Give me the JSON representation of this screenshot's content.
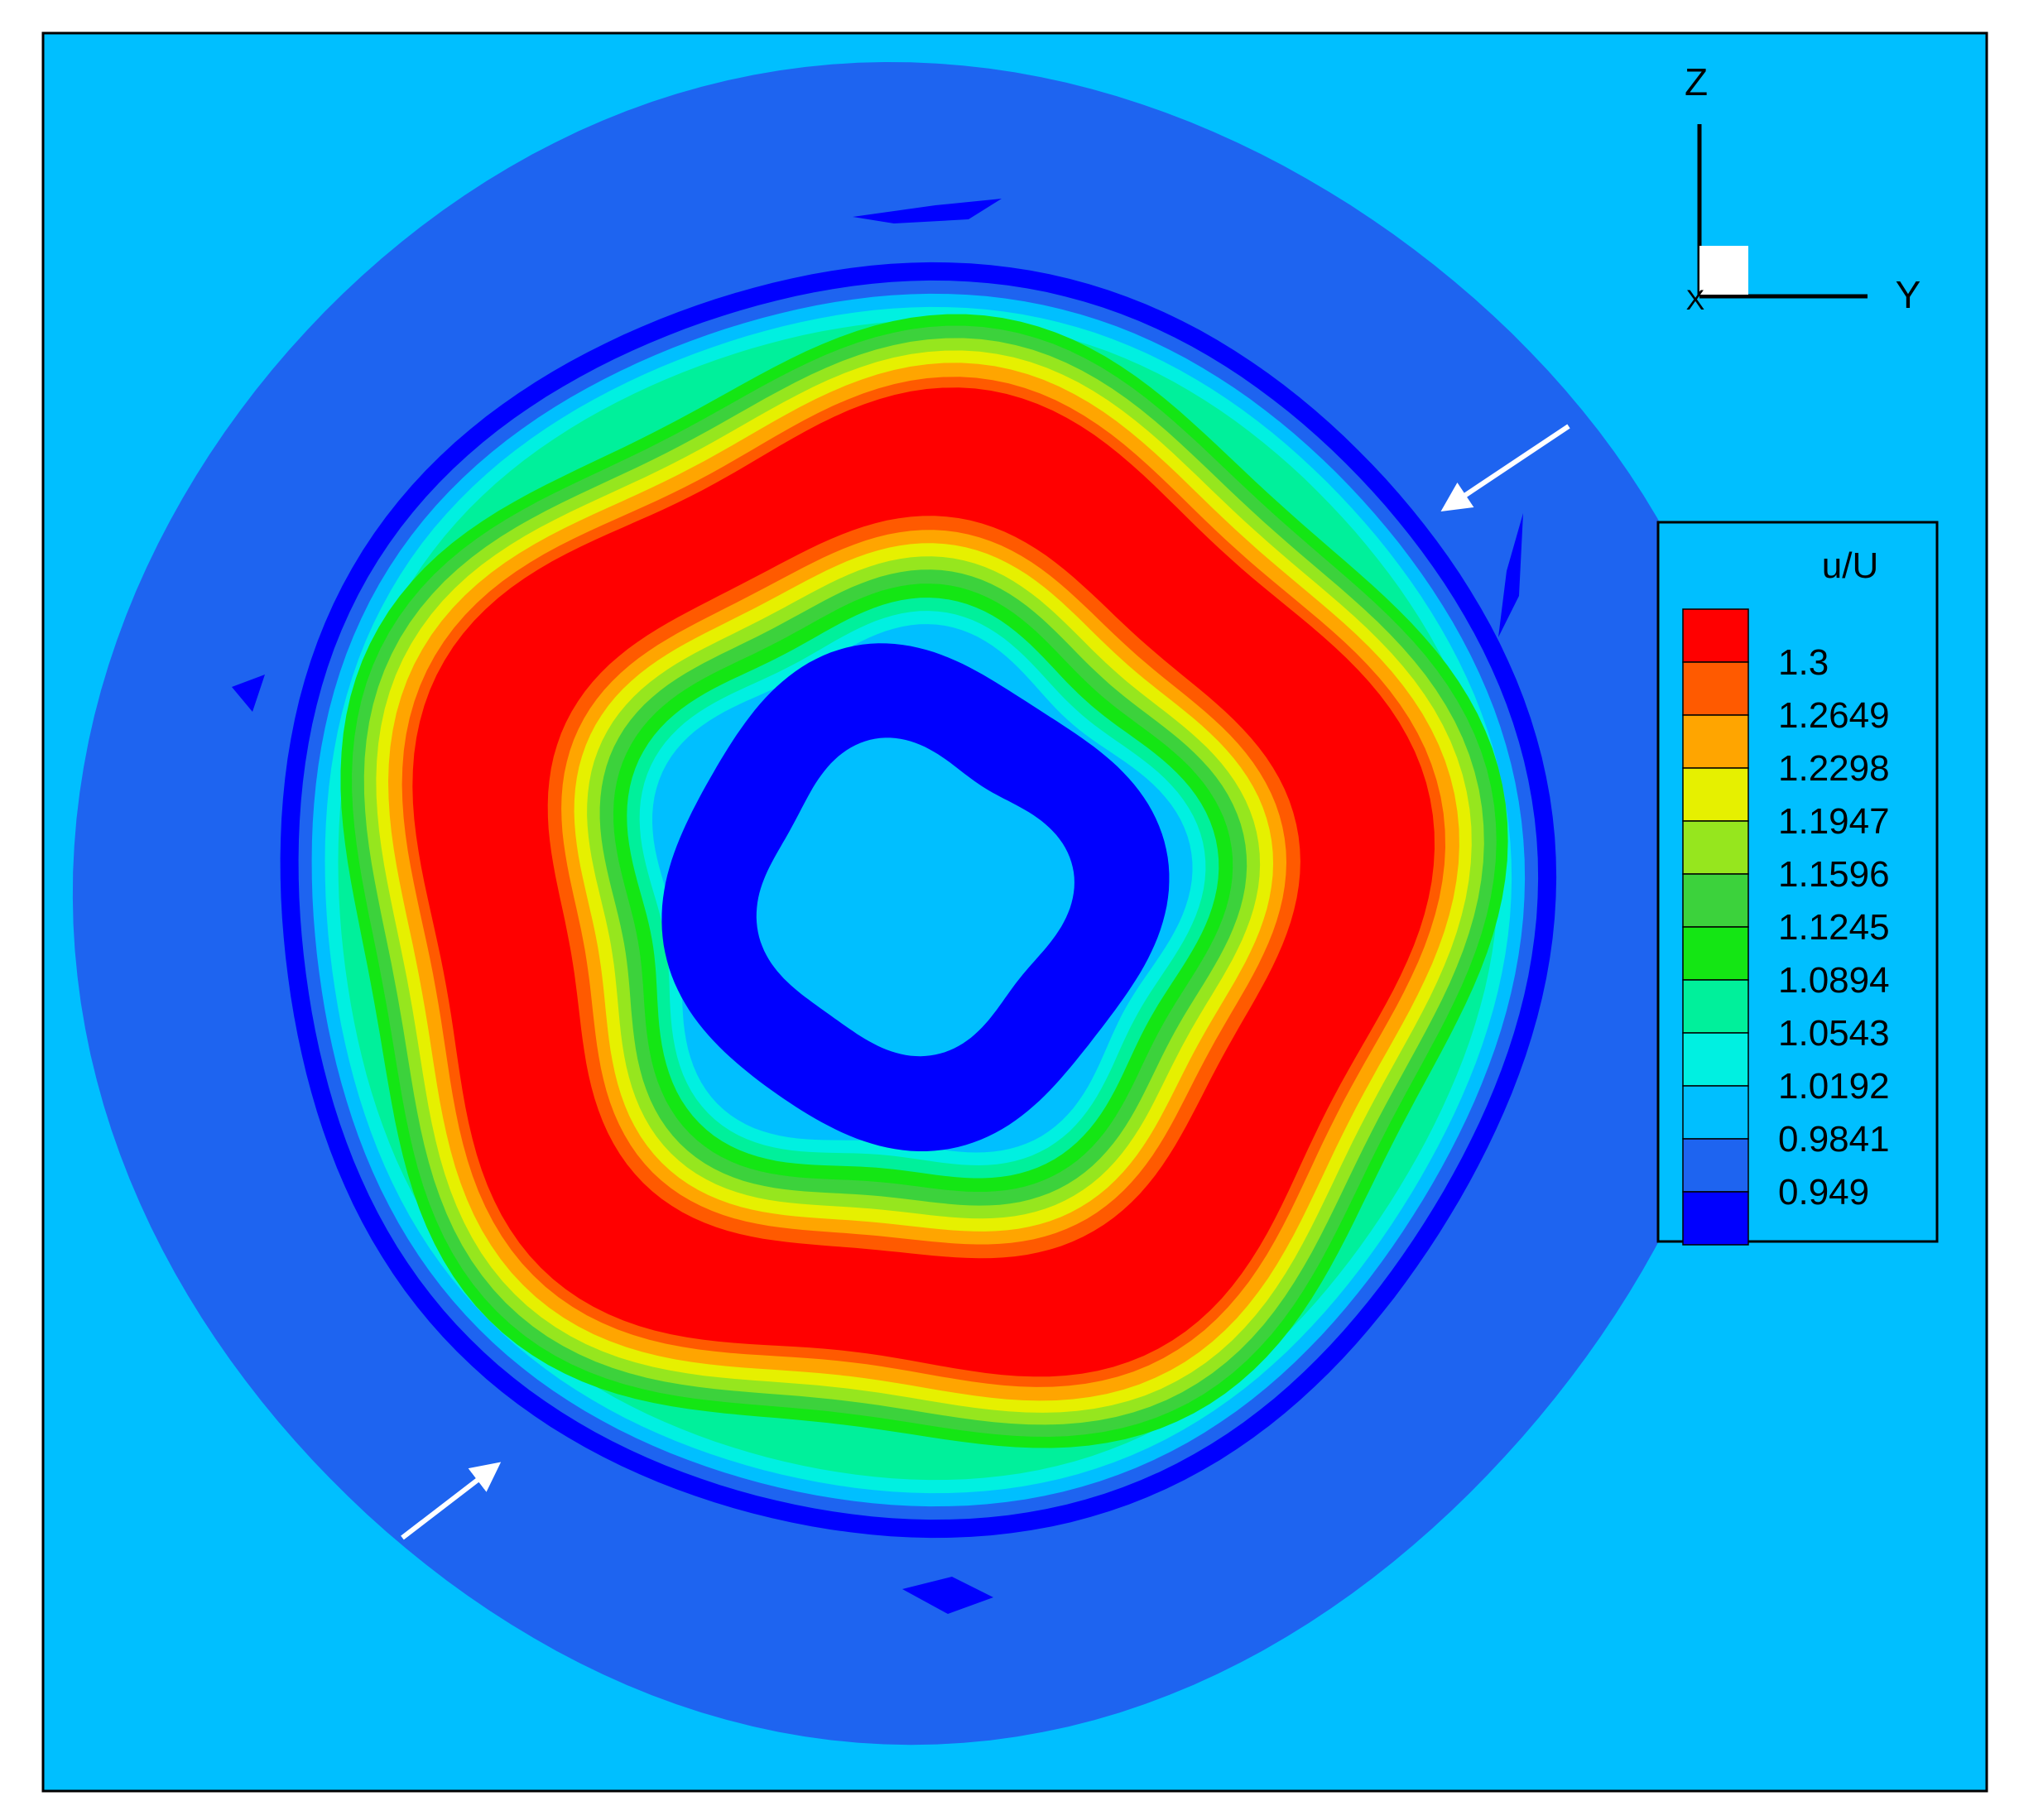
{
  "chart_data": {
    "type": "heatmap",
    "variable": "u/U",
    "title": "",
    "colorbar": {
      "title": "u/U",
      "levels": [
        1.3,
        1.2649,
        1.2298,
        1.1947,
        1.1596,
        1.1245,
        1.0894,
        1.0543,
        1.0192,
        0.9841,
        0.949
      ],
      "colors": [
        "#ff0000",
        "#ff5a00",
        "#ffa500",
        "#e6f000",
        "#96e61e",
        "#3cd23c",
        "#14e614",
        "#00f09b",
        "#00f0e1",
        "#00bfff",
        "#1e64f0",
        "#0000ff"
      ],
      "placement": "right"
    },
    "background_color": "#00bfff",
    "axes_triad": {
      "vertical": "Z",
      "horizontal": "Y",
      "out_of_plane": "X"
    },
    "annotations": [
      {
        "type": "arrow",
        "color": "#ffffff",
        "pointing": "toward outer ring, upper-right"
      },
      {
        "type": "arrow",
        "color": "#ffffff",
        "pointing": "toward outer ring, lower-left"
      }
    ]
  }
}
